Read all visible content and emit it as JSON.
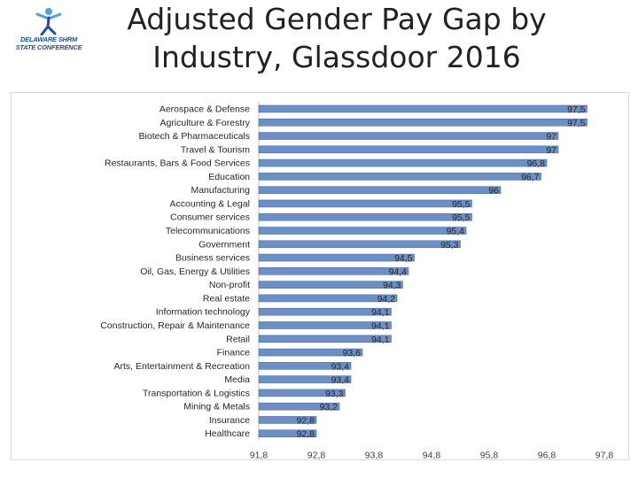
{
  "logo": {
    "line1": "DELAWARE",
    "line1b": "SHRM",
    "line2": "STATE CONFERENCE",
    "color": "#1c4f9c",
    "accent": "#4aa3df",
    "icon": "person-figure-icon"
  },
  "title": {
    "line1": "Adjusted Gender Pay Gap by",
    "line2": "Industry, Glassdoor 2016"
  },
  "chart_data": {
    "type": "bar",
    "orientation": "horizontal",
    "title": "Adjusted Gender Pay Gap by Industry, Glassdoor 2016",
    "categories": [
      "Aerospace & Defense",
      "Agriculture & Forestry",
      "Biotech & Pharmaceuticals",
      "Travel & Tourism",
      "Restaurants, Bars & Food Services",
      "Education",
      "Manufacturing",
      "Accounting & Legal",
      "Consumer services",
      "Telecommunications",
      "Government",
      "Business services",
      "Oil, Gas, Energy & Utilities",
      "Non-profit",
      "Real estate",
      "Information technology",
      "Construction, Repair & Maintenance",
      "Retail",
      "Finance",
      "Arts, Entertainment & Recreation",
      "Media",
      "Transportation & Logistics",
      "Mining & Metals",
      "Insurance",
      "Healthcare"
    ],
    "values": [
      97.5,
      97.5,
      97,
      97,
      96.8,
      96.7,
      96,
      95.5,
      95.5,
      95.4,
      95.3,
      94.5,
      94.4,
      94.3,
      94.2,
      94.1,
      94.1,
      94.1,
      93.6,
      93.4,
      93.4,
      93.3,
      93.2,
      92.8,
      92.8
    ],
    "value_labels": [
      "97,5",
      "97,5",
      "97",
      "97",
      "96,8",
      "96,7",
      "96",
      "95,5",
      "95,5",
      "95,4",
      "95,3",
      "94,5",
      "94,4",
      "94,3",
      "94,2",
      "94,1",
      "94,1",
      "94,1",
      "93,6",
      "93,4",
      "93,4",
      "93,3",
      "93,2",
      "92,8",
      "92,8"
    ],
    "xlim": [
      91.8,
      97.8
    ],
    "x_ticks": [
      "91,8",
      "92,8",
      "93,8",
      "94,8",
      "95,8",
      "96,8",
      "97,8"
    ],
    "bar_color": "#6d8fc4",
    "bar_edge": "#4a6fa5",
    "grid": false,
    "legend": "none"
  }
}
